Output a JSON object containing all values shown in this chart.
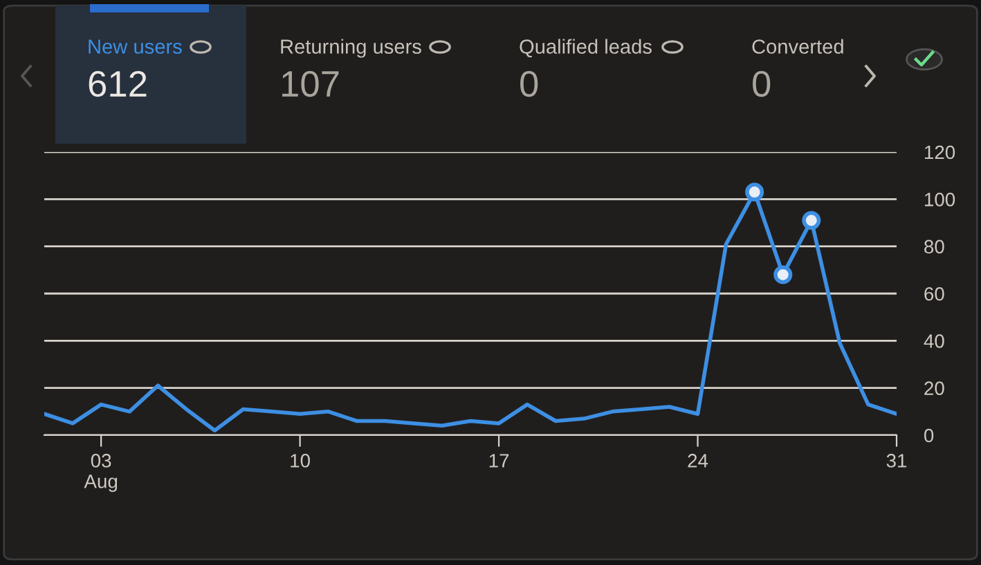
{
  "chart_data": {
    "type": "line",
    "annotations": [
      "New users",
      "612",
      "Returning users",
      "107",
      "Qualified leads",
      "0",
      "Converted",
      "0"
    ],
    "x": [
      1,
      2,
      3,
      4,
      5,
      6,
      7,
      8,
      9,
      10,
      11,
      12,
      13,
      14,
      15,
      16,
      17,
      18,
      19,
      20,
      21,
      22,
      23,
      24,
      25,
      26,
      27,
      28,
      29,
      30,
      31
    ],
    "series": [
      {
        "color": "#3d8fe3",
        "values": [
          9,
          5,
          13,
          10,
          21,
          11,
          2,
          11,
          10,
          9,
          10,
          6,
          6,
          5,
          4,
          6,
          5,
          13,
          6,
          7,
          10,
          11,
          12,
          9,
          81,
          103,
          68,
          91,
          39,
          13,
          9
        ]
      },
      {
        "type": "scatter",
        "color": "#3d8fe3",
        "marker": "circle",
        "x": [
          26,
          27,
          28
        ],
        "values": [
          103,
          68,
          91
        ]
      }
    ],
    "xlim": [
      1,
      31
    ],
    "xticks": [
      {
        "value": 3,
        "label": "03\nAug"
      },
      {
        "value": 10,
        "label": "10"
      },
      {
        "value": 17,
        "label": "17"
      },
      {
        "value": 24,
        "label": "24"
      },
      {
        "value": 31,
        "label": "31"
      }
    ],
    "ylim": [
      0,
      120
    ],
    "yticks": [
      0,
      20,
      40,
      60,
      80,
      100,
      120
    ],
    "grid": "y",
    "marker": "none",
    "line_style": "solid"
  }
}
